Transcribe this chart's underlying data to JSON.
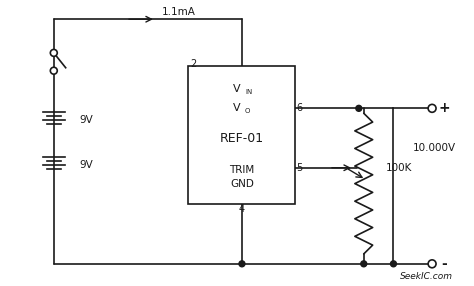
{
  "bg_color": "#ffffff",
  "line_color": "#1a1a1a",
  "text_color": "#1a1a1a",
  "fig_width": 4.74,
  "fig_height": 2.86,
  "dpi": 100,
  "watermark": "SeekIC.com",
  "ic_label": "REF-01",
  "vin_label": "V",
  "vin_sub": "IN",
  "vo_label": "V",
  "vo_sub": "O",
  "trim_label": "TRIM",
  "gnd_label": "GND",
  "pin2": "2",
  "pin4": "4",
  "pin5": "5",
  "pin6": "6",
  "current_label": "1.1mA",
  "resistor_label": "100K",
  "voltage_label": "10.000V",
  "bat1_label": "9V",
  "bat2_label": "9V",
  "plus_label": "+",
  "minus_label": "-"
}
